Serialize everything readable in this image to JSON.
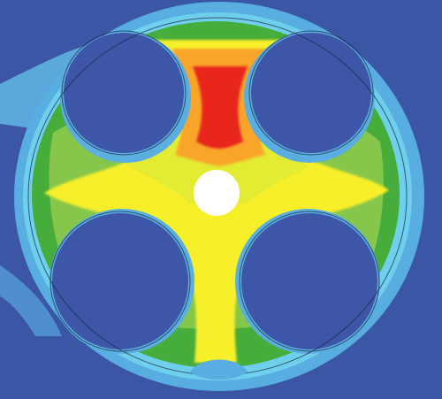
{
  "figure": {
    "kind": "contour field plot",
    "palette": {
      "background": "#3a56a5",
      "deep_blue": "#3d56a8",
      "light_blue": "#58aee0",
      "cyan": "#6fd0ee",
      "green": "#46ad3a",
      "light_green": "#86c64a",
      "yellow_green": "#c5de3e",
      "yellow": "#f6ef2a",
      "orange": "#f9a52b",
      "red": "#e9251c",
      "hole": "#ffffff"
    }
  }
}
